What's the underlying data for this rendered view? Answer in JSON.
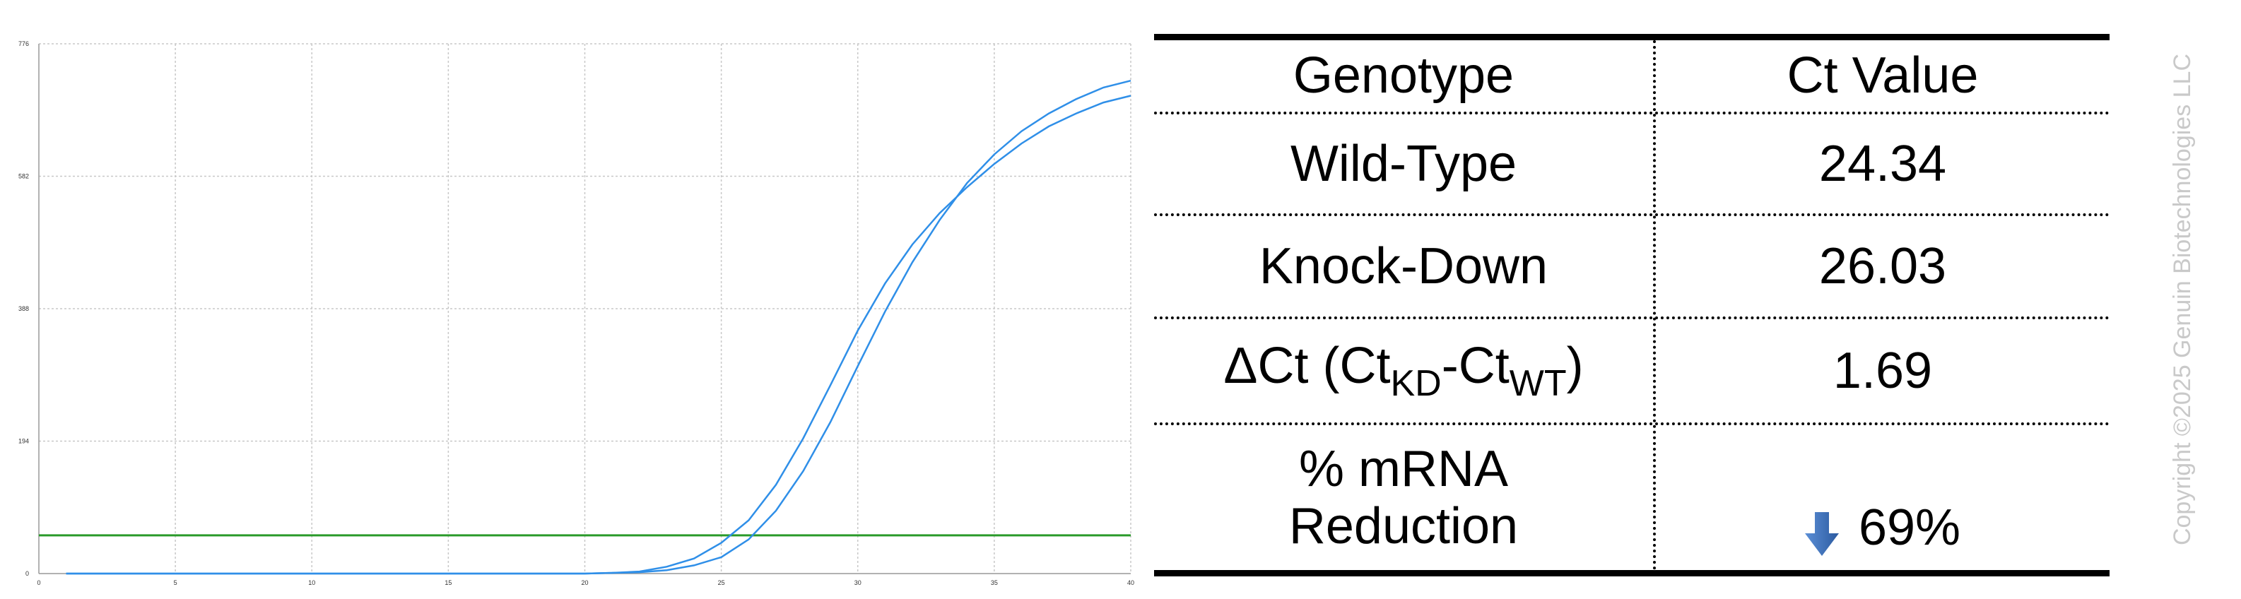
{
  "chart_data": {
    "type": "line",
    "title": "",
    "xlabel": "",
    "ylabel": "",
    "xlim": [
      0,
      40
    ],
    "ylim": [
      0,
      776
    ],
    "x_ticks": [
      0,
      5,
      10,
      15,
      20,
      25,
      30,
      35,
      40
    ],
    "y_ticks": [
      0,
      194,
      388,
      582,
      776
    ],
    "grid": true,
    "series": [
      {
        "color": "#2f8fe8",
        "x": [
          1,
          2,
          3,
          4,
          5,
          6,
          7,
          8,
          9,
          10,
          11,
          12,
          13,
          14,
          15,
          16,
          17,
          18,
          19,
          20,
          21,
          22,
          23,
          24,
          25,
          26,
          27,
          28,
          29,
          30,
          31,
          32,
          33,
          34,
          35,
          36,
          37,
          38,
          39,
          40
        ],
        "y": [
          0,
          0,
          0,
          0,
          0,
          0,
          0,
          0,
          0,
          0,
          0,
          0,
          0,
          0,
          0,
          0,
          0,
          0,
          0,
          0,
          1,
          3,
          10,
          22,
          45,
          78,
          130,
          198,
          276,
          356,
          425,
          482,
          528,
          566,
          600,
          630,
          655,
          674,
          690,
          700
        ]
      },
      {
        "color": "#2f8fe8",
        "x": [
          1,
          2,
          3,
          4,
          5,
          6,
          7,
          8,
          9,
          10,
          11,
          12,
          13,
          14,
          15,
          16,
          17,
          18,
          19,
          20,
          21,
          22,
          23,
          24,
          25,
          26,
          27,
          28,
          29,
          30,
          31,
          32,
          33,
          34,
          35,
          36,
          37,
          38,
          39,
          40
        ],
        "y": [
          0,
          0,
          0,
          0,
          0,
          0,
          0,
          0,
          0,
          0,
          0,
          0,
          0,
          0,
          0,
          0,
          0,
          0,
          0,
          0,
          1,
          2,
          5,
          12,
          24,
          50,
          92,
          150,
          222,
          304,
          384,
          456,
          518,
          572,
          614,
          648,
          674,
          695,
          712,
          722
        ]
      }
    ],
    "threshold": {
      "y": 56,
      "color": "#2a9a2a"
    }
  },
  "table": {
    "headers": [
      "Genotype",
      "Ct Value"
    ],
    "rows": [
      {
        "label": "Wild-Type",
        "value": "24.34"
      },
      {
        "label": "Knock-Down",
        "value": "26.03"
      }
    ],
    "delta_ct": {
      "prefix": "ΔCt (Ct",
      "sub1": "KD",
      "mid": "-Ct",
      "sub2": "WT",
      "suffix": ")",
      "value": "1.69"
    },
    "reduction": {
      "line1": "% mRNA",
      "line2": "Reduction",
      "value": "69%",
      "arrow_icon": "down-arrow-icon",
      "arrow_color": "#3b6fb6"
    }
  },
  "copyright": "Copyright ©2025 Genuin Biotechnologies LLC"
}
